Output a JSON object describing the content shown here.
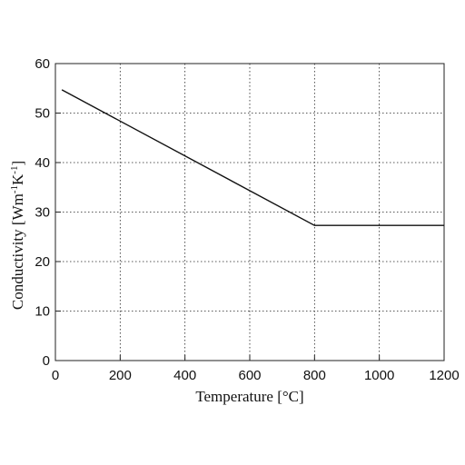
{
  "chart_data": {
    "type": "line",
    "xlabel": "Temperature [°C]",
    "ylabel_main": "Conductivity [Wm",
    "ylabel_sup1": "-1",
    "ylabel_mid": "K",
    "ylabel_sup2": "-1",
    "ylabel_end": "]",
    "xlim": [
      0,
      1200
    ],
    "ylim": [
      0,
      60
    ],
    "x_ticks": [
      0,
      200,
      400,
      600,
      800,
      1000,
      1200
    ],
    "y_ticks": [
      0,
      10,
      20,
      30,
      40,
      50,
      60
    ],
    "grid": true,
    "series": [
      {
        "x": [
          20,
          800,
          1200
        ],
        "y": [
          54.7,
          27.3,
          27.3
        ]
      }
    ]
  }
}
